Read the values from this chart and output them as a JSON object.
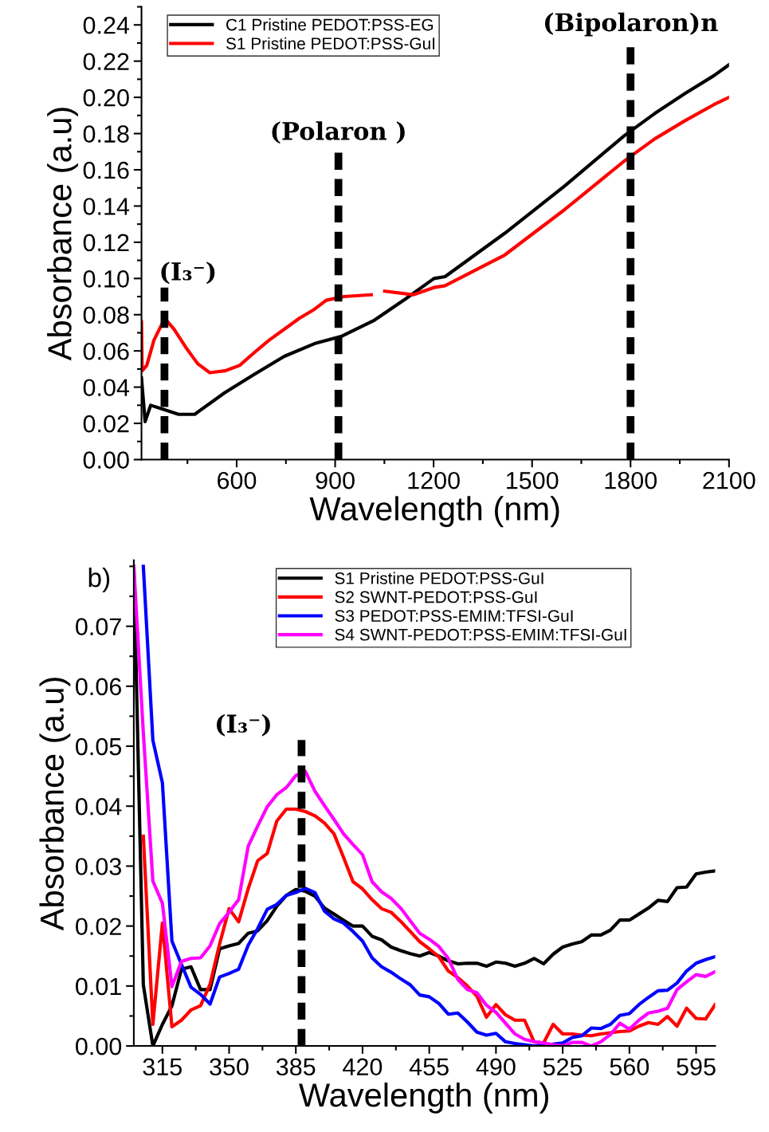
{
  "chart_data": [
    {
      "type": "line",
      "xlabel": "Wavelength (nm)",
      "ylabel": "Absorbance (a.u)",
      "xlim": [
        310,
        2100
      ],
      "ylim": [
        0,
        0.25
      ],
      "xticks": [
        600,
        900,
        1200,
        1500,
        1800,
        2100
      ],
      "yticks": [
        {
          "value": 0,
          "label": "0.00"
        },
        {
          "value": 0.02,
          "label": "0.02"
        },
        {
          "value": 0.04,
          "label": "0.04"
        },
        {
          "value": 0.06,
          "label": "0.06"
        },
        {
          "value": 0.08,
          "label": "0.08"
        },
        {
          "value": 0.1,
          "label": "0.10"
        },
        {
          "value": 0.12,
          "label": "0.12"
        },
        {
          "value": 0.14,
          "label": "0.14"
        },
        {
          "value": 0.16,
          "label": "0.16"
        },
        {
          "value": 0.18,
          "label": "0.18"
        },
        {
          "value": 0.2,
          "label": "0.20"
        },
        {
          "value": 0.22,
          "label": "0.22"
        },
        {
          "value": 0.24,
          "label": "0.24"
        }
      ],
      "legend": "top left",
      "grid": false,
      "line_style": "solid",
      "series": [
        {
          "name": "C1 Pristine PEDOT:PSS-EG",
          "color": "#000000",
          "x": [
            310,
            321,
            338,
            423,
            472,
            564,
            653,
            745,
            837,
            918,
            1020,
            1109,
            1201,
            1235,
            1417,
            1599,
            1782,
            1873,
            1965,
            2054,
            2100
          ],
          "values": [
            0.045,
            0.021,
            0.03,
            0.025,
            0.025,
            0.037,
            0.047,
            0.057,
            0.064,
            0.068,
            0.077,
            0.088,
            0.1,
            0.101,
            0.125,
            0.151,
            0.179,
            0.191,
            0.202,
            0.212,
            0.218
          ]
        },
        {
          "name": "S1 Pristine PEDOT:PSS-GuI",
          "color": "#ff0000",
          "x": [
            310,
            312,
            326,
            348,
            381,
            409,
            445,
            481,
            518,
            564,
            609,
            653,
            699,
            745,
            791,
            837,
            873,
            927,
            1010,
            1030,
            1051,
            1138,
            1201,
            1235,
            1417,
            1599,
            1782,
            1873,
            1965,
            2054,
            2100
          ],
          "values": [
            0.076,
            0.049,
            0.052,
            0.066,
            0.078,
            0.072,
            0.062,
            0.053,
            0.048,
            0.049,
            0.052,
            0.059,
            0.066,
            0.072,
            0.078,
            0.083,
            0.088,
            0.09,
            0.091,
            null,
            0.093,
            0.091,
            0.095,
            0.096,
            0.113,
            0.138,
            0.165,
            0.177,
            0.187,
            0.196,
            0.2
          ]
        }
      ],
      "ref_lines": [
        {
          "axis": "x",
          "value": 380,
          "label": "(I₃⁻)",
          "color": "#000000",
          "line_style": "dashed"
        },
        {
          "axis": "x",
          "value": 910,
          "label": "(Polaron )",
          "color": "#000000",
          "line_style": "dashed"
        },
        {
          "axis": "x",
          "value": 1800,
          "label": "(Bipolaron)n",
          "color": "#000000",
          "line_style": "dashed"
        }
      ]
    },
    {
      "type": "line",
      "xlabel": "Wavelength (nm)",
      "ylabel": "Absorbance (a.u)",
      "xlim": [
        300,
        605
      ],
      "ylim": [
        0,
        0.081
      ],
      "xticks": [
        315,
        350,
        385,
        420,
        455,
        490,
        525,
        560,
        595
      ],
      "yticks": [
        {
          "value": 0,
          "label": "0.00"
        },
        {
          "value": 0.01,
          "label": "0.01"
        },
        {
          "value": 0.02,
          "label": "0.02"
        },
        {
          "value": 0.03,
          "label": "0.03"
        },
        {
          "value": 0.04,
          "label": "0.04"
        },
        {
          "value": 0.05,
          "label": "0.05"
        },
        {
          "value": 0.06,
          "label": "0.06"
        },
        {
          "value": 0.07,
          "label": "0.07"
        }
      ],
      "legend": "top",
      "grid": false,
      "line_style": "solid",
      "annotations": [
        "b)"
      ],
      "x": [
        300,
        305,
        310,
        315,
        320,
        325,
        330,
        335,
        340,
        345,
        350,
        355,
        360,
        365,
        370,
        375,
        380,
        385,
        390,
        395,
        400,
        405,
        410,
        415,
        420,
        425,
        430,
        435,
        440,
        445,
        450,
        455,
        460,
        465,
        470,
        475,
        480,
        485,
        490,
        495,
        500,
        505,
        510,
        515,
        520,
        525,
        530,
        535,
        540,
        545,
        550,
        555,
        560,
        565,
        570,
        575,
        580,
        585,
        590,
        595,
        600,
        605
      ],
      "series": [
        {
          "name": "S1 Pristine PEDOT:PSS-GuI",
          "color": "#000000",
          "values": [
            0.08,
            0.0102,
            0.0,
            0.0036,
            0.0067,
            0.0128,
            0.0132,
            0.0094,
            0.0094,
            0.0162,
            0.0167,
            0.0171,
            0.0188,
            0.0192,
            0.0209,
            0.0233,
            0.0251,
            0.0261,
            0.0258,
            0.025,
            0.023,
            0.022,
            0.021,
            0.02,
            0.02,
            0.0183,
            0.0177,
            0.0165,
            0.0159,
            0.0154,
            0.015,
            0.0156,
            0.015,
            0.0142,
            0.0137,
            0.0138,
            0.0138,
            0.0133,
            0.014,
            0.0138,
            0.0133,
            0.0138,
            0.0146,
            0.0137,
            0.0153,
            0.0165,
            0.017,
            0.0174,
            0.0185,
            0.0185,
            0.0193,
            0.021,
            0.021,
            0.022,
            0.023,
            0.0243,
            0.0241,
            0.0264,
            0.0265,
            0.0287,
            0.029,
            0.0292
          ]
        },
        {
          "name": "S2 SWNT-PEDOT:PSS-GuI",
          "color": "#ff0000",
          "values": [
            null,
            0.035,
            0.0036,
            0.0205,
            0.0032,
            0.0043,
            0.006,
            0.0067,
            0.0103,
            0.017,
            0.0229,
            0.0207,
            0.0262,
            0.0309,
            0.0321,
            0.0375,
            0.0395,
            0.0395,
            0.0391,
            0.0384,
            0.0372,
            0.0354,
            0.0315,
            0.0274,
            0.0262,
            0.0244,
            0.0229,
            0.0223,
            0.0208,
            0.0191,
            0.0174,
            0.0162,
            0.0149,
            0.0125,
            0.0114,
            0.01,
            0.0083,
            0.0048,
            0.0069,
            0.0052,
            0.0043,
            0.0043,
            0.0007,
            0.0005,
            0.0036,
            0.002,
            0.002,
            0.0018,
            0.0017,
            0.002,
            0.0022,
            0.0024,
            0.0025,
            0.0033,
            0.0039,
            0.0036,
            0.0049,
            0.0033,
            0.0063,
            0.0046,
            0.0045,
            0.0069
          ]
        },
        {
          "name": "S3 PEDOT:PSS-EMIM:TFSI-GuI",
          "color": "#0000ff",
          "values": [
            null,
            0.08,
            0.051,
            0.0439,
            0.0175,
            0.0136,
            0.0098,
            0.0086,
            0.007,
            0.0115,
            0.0121,
            0.0128,
            0.0168,
            0.0196,
            0.0228,
            0.0236,
            0.0251,
            0.0256,
            0.0263,
            0.0256,
            0.0225,
            0.0212,
            0.0205,
            0.0191,
            0.0175,
            0.0147,
            0.0132,
            0.0123,
            0.0112,
            0.0102,
            0.0085,
            0.0082,
            0.0071,
            0.0053,
            0.0055,
            0.004,
            0.0023,
            0.0018,
            0.0021,
            0.0007,
            0.0004,
            0.0002,
            0.0,
            0.0,
            0.0003,
            0.0005,
            0.0014,
            0.0017,
            0.003,
            0.0029,
            0.0036,
            0.0051,
            0.0054,
            0.0069,
            0.0081,
            0.0092,
            0.0093,
            0.0105,
            0.0125,
            0.0138,
            0.0144,
            0.0149
          ]
        },
        {
          "name": "S4 SWNT-PEDOT:PSS-EMIM:TFSI-GuI",
          "color": "#ff00ff",
          "values": [
            0.08,
            0.0522,
            0.0275,
            0.0238,
            0.0099,
            0.0141,
            0.0146,
            0.0147,
            0.0167,
            0.0204,
            0.0223,
            0.0244,
            0.0333,
            0.0367,
            0.0399,
            0.0419,
            0.0431,
            0.0451,
            0.0458,
            0.0425,
            0.0401,
            0.0378,
            0.0354,
            0.0336,
            0.0319,
            0.0274,
            0.0257,
            0.0246,
            0.023,
            0.0209,
            0.0188,
            0.0178,
            0.0166,
            0.0146,
            0.0111,
            0.0094,
            0.0089,
            0.0068,
            0.0056,
            0.0038,
            0.002,
            0.0011,
            0.0007,
            0.0005,
            0.0002,
            0.0,
            0.0006,
            0.0006,
            0.0,
            0.0007,
            0.0019,
            0.0038,
            0.0028,
            0.0043,
            0.0055,
            0.0058,
            0.0063,
            0.0094,
            0.0107,
            0.0119,
            0.0116,
            0.0124
          ]
        }
      ],
      "ref_lines": [
        {
          "axis": "x",
          "value": 388,
          "label": "(I₃⁻)",
          "color": "#000000",
          "line_style": "dashed"
        }
      ]
    }
  ]
}
